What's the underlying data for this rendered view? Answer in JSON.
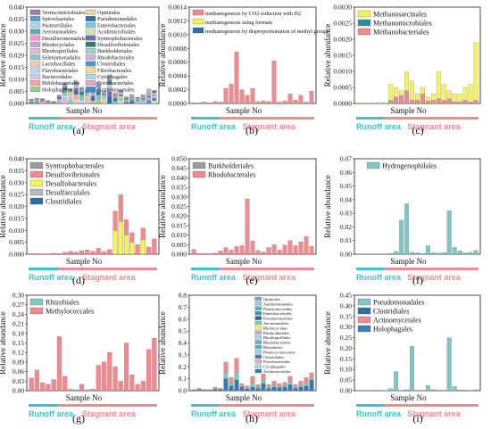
{
  "colors": {
    "runoff": "#40C4C9",
    "stagnant": "#F08A8E",
    "axis": "#222222"
  },
  "zones": {
    "runoff": "Runoff area",
    "stagnant": "Stagnant area"
  },
  "chart_data": [
    {
      "panel": "(a)",
      "type": "bar",
      "ylabel": "Relative abundance",
      "xlabel": "Sample No",
      "ylim": [
        0,
        0.04
      ],
      "yticks": [
        "0.000",
        "0.005",
        "0.010",
        "0.015",
        "0.020",
        "0.025",
        "0.030",
        "0.035",
        "0.040"
      ],
      "legend_cols": 2,
      "series": [
        {
          "name": "Verrucomicrobiales",
          "color": "#9B7CB8"
        },
        {
          "name": "Spirochaetales",
          "color": "#5E9ED6"
        },
        {
          "name": "Pasteurellales",
          "color": "#A8D8E8"
        },
        {
          "name": "Aeromonadales",
          "color": "#4FB7B3"
        },
        {
          "name": "Desulfuromonadales",
          "color": "#F49AC2"
        },
        {
          "name": "Rhodocyclales",
          "color": "#C8A2D8"
        },
        {
          "name": "Rhodospirillales",
          "color": "#E4B7D6"
        },
        {
          "name": "Selenomonadales",
          "color": "#80CFC8"
        },
        {
          "name": "Lactobacillales",
          "color": "#F7C7A8"
        },
        {
          "name": "Flavobacteriales",
          "color": "#B3D7F2"
        },
        {
          "name": "Bacteroidales",
          "color": "#D0C6E8"
        },
        {
          "name": "Bifidobacteriales",
          "color": "#F5A3A6"
        },
        {
          "name": "Holophagales",
          "color": "#8FD18B"
        },
        {
          "name": "Opitutales",
          "color": "#E7D7A2"
        },
        {
          "name": "Pseudomonadales",
          "color": "#2F6FA8"
        },
        {
          "name": "Enterobacteriales",
          "color": "#7AC5E0"
        },
        {
          "name": "Acidimicrobiales",
          "color": "#D6E7A0"
        },
        {
          "name": "Syntrophobacterales",
          "color": "#6C6FB0"
        },
        {
          "name": "Desulfovibrionales",
          "color": "#2E7D7A"
        },
        {
          "name": "Burkholderiales",
          "color": "#9DD4C8"
        },
        {
          "name": "Rhodobacterales",
          "color": "#C7B2E0"
        },
        {
          "name": "Clostridiales",
          "color": "#4A9BD1"
        },
        {
          "name": "Fibrobacterales",
          "color": "#F3D98C"
        },
        {
          "name": "Cytophagales",
          "color": "#A1DCE3"
        },
        {
          "name": "Coriobacteriales",
          "color": "#E9A6C7"
        },
        {
          "name": "Actinomycetales",
          "color": "#3A8FC8"
        }
      ],
      "totals": [
        0.0018,
        0.0022,
        0.002,
        0.0012,
        0.0008,
        0.0035,
        0.0085,
        0.0062,
        0.0095,
        0.0068,
        0.0055,
        0.0058,
        0.009,
        0.0052,
        0.012,
        0.0045,
        0.0055,
        0.0028,
        0.0038,
        0.0025,
        0.0035,
        0.006,
        0.0055
      ],
      "highlight": [
        {
          "index": 6,
          "value": 0.016
        },
        {
          "index": 14,
          "value": 0.016
        }
      ]
    },
    {
      "panel": "(b)",
      "type": "bar",
      "ylabel": "Relative abundance",
      "xlabel": "Sample No",
      "ylim": [
        0,
        0.0014
      ],
      "yticks": [
        "0.0000",
        "0.0002",
        "0.0004",
        "0.0006",
        "0.0008",
        "0.0010",
        "0.0012",
        "0.0014"
      ],
      "series": [
        {
          "name": "methanogenesis by CO2 reduction with H2",
          "color": "#F08A8E"
        },
        {
          "name": "methanogenesis using formate",
          "color": "#F3F35A"
        },
        {
          "name": "methanogenesis by disproportionation of methyl groups",
          "color": "#2F6FA8"
        }
      ],
      "values": [
        1e-05,
        1e-05,
        2e-05,
        1e-05,
        3e-05,
        2e-05,
        0.00022,
        0.00028,
        0.00075,
        0.0002,
        0.00012,
        0.00022,
        3e-05,
        4e-05,
        3e-05,
        0.00062,
        2e-05,
        4e-05,
        0.00014,
        5e-05,
        0.00012,
        2e-05,
        0.00018
      ]
    },
    {
      "panel": "(c)",
      "type": "bar",
      "ylabel": "Relative abundance",
      "xlabel": "Sample No",
      "ylim": [
        0,
        0.003
      ],
      "yticks": [
        "0.0000",
        "0.0005",
        "0.0010",
        "0.0015",
        "0.0020",
        "0.0025",
        "0.0030"
      ],
      "series": [
        {
          "name": "Methanosarcinales",
          "color": "#F3F35A"
        },
        {
          "name": "Methanomicrobiales",
          "color": "#2F8CA0"
        },
        {
          "name": "Methanobacteriales",
          "color": "#F08A8E"
        }
      ],
      "values": [
        1e-05,
        1e-05,
        2e-05,
        1e-05,
        3e-05,
        2e-05,
        0.0006,
        0.0005,
        0.0004,
        0.001,
        0.0007,
        0.0003,
        0.0005,
        0.0002,
        0.0003,
        0.001,
        0.0006,
        0.0004,
        0.0003,
        0.0003,
        0.0005,
        0.0006,
        0.0019
      ],
      "red": [
        0,
        0,
        0,
        0,
        0,
        0,
        0.0001,
        0.0002,
        0.00025,
        0.0004,
        0.0001,
        0.0001,
        0.0003,
        8e-05,
        0.0001,
        0.00015,
        0.0001,
        0.00015,
        5e-05,
        5e-05,
        0.0001,
        5e-05,
        0.0001
      ]
    },
    {
      "panel": "(d)",
      "type": "bar",
      "ylabel": "Relative abundance",
      "xlabel": "Sample No",
      "ylim": [
        0,
        0.04
      ],
      "yticks": [
        "0.000",
        "0.005",
        "0.010",
        "0.015",
        "0.020",
        "0.025",
        "0.030",
        "0.035",
        "0.040"
      ],
      "series": [
        {
          "name": "Syntrophobacterales",
          "color": "#9C9C9C"
        },
        {
          "name": "Desulfovibrionales",
          "color": "#F08A8E"
        },
        {
          "name": "Desulfobacterales",
          "color": "#F3F35A"
        },
        {
          "name": "Desulfarculales",
          "color": "#B8B8B8"
        },
        {
          "name": "Clostridiales",
          "color": "#2F6FA8"
        }
      ],
      "values": [
        0.0002,
        0.0003,
        0.0002,
        0.0002,
        0.0004,
        0.0003,
        0.0008,
        0.0012,
        0.0009,
        0.0015,
        0.0018,
        0.0012,
        0.0025,
        0.001,
        0.002,
        0.018,
        0.025,
        0.0145,
        0.009,
        0.004,
        0.011,
        0.003,
        0.0065
      ]
    },
    {
      "panel": "(e)",
      "type": "bar",
      "ylabel": "Relative abundance",
      "xlabel": "Sample No",
      "ylim": [
        0,
        0.05
      ],
      "yticks": [
        "0.000",
        "0.005",
        "0.010",
        "0.015",
        "0.020",
        "0.025",
        "0.030",
        "0.035",
        "0.040",
        "0.045",
        "0.050"
      ],
      "series": [
        {
          "name": "Burkholderiales",
          "color": "#9C9C9C"
        },
        {
          "name": "Rhodobacterales",
          "color": "#F08A8E"
        }
      ],
      "values": [
        0.0025,
        0.0004,
        0.0003,
        0.0003,
        0.0006,
        0.0018,
        0.0035,
        0.0022,
        0.004,
        0.0045,
        0.029,
        0.007,
        0.002,
        0.0012,
        0.0035,
        0.005,
        0.0022,
        0.0048,
        0.0072,
        0.0045,
        0.0065,
        0.0092,
        0.0042
      ]
    },
    {
      "panel": "(f)",
      "type": "bar",
      "ylabel": "Relative abundance",
      "xlabel": "Sample No",
      "ylim": [
        0,
        0.07
      ],
      "yticks": [
        "0.00",
        "0.01",
        "0.02",
        "0.03",
        "0.04",
        "0.05",
        "0.06",
        "0.07"
      ],
      "series": [
        {
          "name": "Hydrogenophilales",
          "color": "#7FC6C4"
        }
      ],
      "values": [
        0.0002,
        0.0002,
        0.0001,
        0.0002,
        0.0001,
        0.0002,
        0.0005,
        0.002,
        0.025,
        0.037,
        0.0015,
        0.001,
        0.0005,
        0.0062,
        0.001,
        0.0008,
        0.0012,
        0.032,
        0.005,
        0.0025,
        0.001,
        0.0015,
        0.0028
      ]
    },
    {
      "panel": "(g)",
      "type": "bar",
      "ylabel": "Relative abundance",
      "xlabel": "Sample No",
      "ylim": [
        0,
        0.3
      ],
      "yticks": [
        "0.00",
        "0.03",
        "0.06",
        "0.09",
        "0.12",
        "0.15",
        "0.18",
        "0.21",
        "0.24",
        "0.27",
        "0.30"
      ],
      "series": [
        {
          "name": "Rhizobiales",
          "color": "#7FC6C4"
        },
        {
          "name": "Methylococcales",
          "color": "#F08A8E"
        }
      ],
      "values": [
        0.04,
        0.065,
        0.025,
        0.02,
        0.035,
        0.17,
        0.045,
        0.005,
        0.003,
        0.02,
        0.003,
        0.005,
        0.08,
        0.09,
        0.12,
        0.075,
        0.03,
        0.15,
        0.05,
        0.02,
        0.03,
        0.13,
        0.165
      ]
    },
    {
      "panel": "(h)",
      "type": "bar",
      "ylabel": "Relative abundance",
      "xlabel": "Sample No",
      "ylim": [
        0,
        0.8
      ],
      "yticks": [
        "0.0",
        "0.1",
        "0.2",
        "0.3",
        "0.4",
        "0.5",
        "0.6",
        "0.7",
        "0.8"
      ],
      "legend_small": true,
      "series": [
        {
          "name": "Opitutales",
          "color": "#7E9FD3"
        },
        {
          "name": "Xanthomonadales",
          "color": "#9BC8E6"
        },
        {
          "name": "Planctomycetales",
          "color": "#5EB6B2"
        },
        {
          "name": "Enterobacteriales",
          "color": "#3E8CC6"
        },
        {
          "name": "Pseudomonadales",
          "color": "#2D5E9A"
        },
        {
          "name": "Aeromonadales",
          "color": "#7ECFB8"
        },
        {
          "name": "Rhodocyclales",
          "color": "#F3F35A"
        },
        {
          "name": "Burkholderiales",
          "color": "#C8A2D8"
        },
        {
          "name": "Rhodospirillales",
          "color": "#9EDAE0"
        },
        {
          "name": "Rhodobacterales",
          "color": "#6BA8D9"
        },
        {
          "name": "Rhizobiales",
          "color": "#4FB7B3"
        },
        {
          "name": "Planococcinaceales",
          "color": "#B0C7EA"
        },
        {
          "name": "Clostridiales",
          "color": "#3A7FC0"
        },
        {
          "name": "Flavobacteriales",
          "color": "#E9A6C7"
        },
        {
          "name": "Cytophagales",
          "color": "#A1DCE3"
        },
        {
          "name": "Actinomycetales",
          "color": "#2E7DB6"
        }
      ],
      "values": [
        0.01,
        0.02,
        0.01,
        0.01,
        0.03,
        0.02,
        0.24,
        0.11,
        0.27,
        0.06,
        0.04,
        0.12,
        0.05,
        0.14,
        0.05,
        0.08,
        0.06,
        0.07,
        0.12,
        0.05,
        0.08,
        0.11,
        0.15
      ],
      "accent": [
        0.002,
        0.005,
        0.003,
        0.002,
        0.01,
        0.008,
        0.1,
        0.04,
        0.09,
        0.03,
        0.015,
        0.03,
        0.02,
        0.06,
        0.02,
        0.03,
        0.025,
        0.03,
        0.05,
        0.02,
        0.03,
        0.04,
        0.09
      ]
    },
    {
      "panel": "(i)",
      "type": "bar",
      "ylabel": "Relative abundance",
      "xlabel": "Sample No",
      "ylim": [
        0,
        0.45
      ],
      "yticks": [
        "0.00",
        "0.05",
        "0.10",
        "0.15",
        "0.20",
        "0.25",
        "0.30",
        "0.35",
        "0.40",
        "0.45"
      ],
      "series": [
        {
          "name": "Pseudomonadales",
          "color": "#7FC6C4"
        },
        {
          "name": "Clostridiales",
          "color": "#2F6FA8"
        },
        {
          "name": "Actinomycetales",
          "color": "#F08A8E"
        },
        {
          "name": "Holophagales",
          "color": "#3A7FC0"
        }
      ],
      "values": [
        0.001,
        0.001,
        0.001,
        0.002,
        0.002,
        0.002,
        0.01,
        0.09,
        0.002,
        0.005,
        0.21,
        0.002,
        0.002,
        0.025,
        0.005,
        0.003,
        0.002,
        0.25,
        0.02,
        0.004,
        0.003,
        0.002,
        0.005
      ]
    }
  ]
}
